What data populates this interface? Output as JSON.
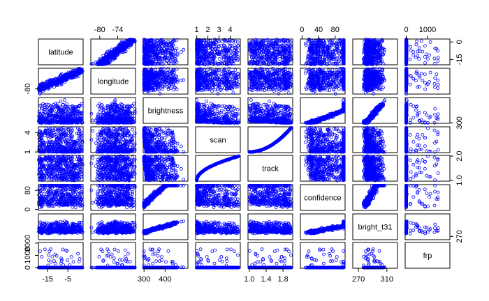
{
  "colors": {
    "point": "#0000ff",
    "frame": "#000000",
    "background": "#ffffff"
  },
  "chart_data": {
    "type": "scatter",
    "subtype": "scatterplot-matrix",
    "title": "",
    "variables": [
      "latitude",
      "longitude",
      "brightness",
      "scan",
      "track",
      "confidence",
      "bright_t31",
      "frp"
    ],
    "ranges": {
      "latitude": [
        -19.5,
        2.5
      ],
      "longitude": [
        -83,
        -68
      ],
      "brightness": [
        296,
        508
      ],
      "scan": [
        0.9,
        4.9
      ],
      "track": [
        0.97,
        2.03
      ],
      "confidence": [
        -4,
        104
      ],
      "bright_t31": [
        262,
        325
      ],
      "frp": [
        -50,
        2050
      ]
    },
    "axis_ticks": {
      "top": [
        {
          "variable": "longitude",
          "ticks": [
            -80,
            -74
          ]
        },
        {
          "variable": "scan",
          "ticks": [
            1,
            2,
            3,
            4
          ]
        },
        {
          "variable": "confidence",
          "ticks": [
            0,
            40,
            80
          ]
        },
        {
          "variable": "frp",
          "ticks": [
            0,
            1000
          ]
        }
      ],
      "bottom": [
        {
          "variable": "latitude",
          "ticks": [
            -15,
            -5
          ]
        },
        {
          "variable": "brightness",
          "ticks": [
            300,
            400
          ]
        },
        {
          "variable": "track",
          "ticks": [
            1.0,
            1.4,
            1.8
          ]
        },
        {
          "variable": "bright_t31",
          "ticks": [
            270,
            310
          ]
        }
      ],
      "right": [
        {
          "variable": "latitude",
          "ticks": [
            0,
            -15
          ]
        },
        {
          "variable": "brightness",
          "ticks": [
            300
          ]
        },
        {
          "variable": "track",
          "ticks": [
            1.0,
            2.0
          ]
        },
        {
          "variable": "bright_t31",
          "ticks": [
            270
          ]
        }
      ],
      "left": [
        {
          "variable": "longitude",
          "ticks": [
            -80
          ]
        },
        {
          "variable": "scan",
          "ticks": [
            1,
            4
          ]
        },
        {
          "variable": "confidence",
          "ticks": [
            0,
            80
          ]
        },
        {
          "variable": "frp",
          "ticks": [
            0,
            1000,
            2000
          ]
        }
      ]
    },
    "tick_labels": {
      "top": [
        {
          "variable": "longitude",
          "labels": [
            "-80",
            "-74"
          ]
        },
        {
          "variable": "scan",
          "labels": [
            "1",
            "2",
            "3",
            "4"
          ]
        },
        {
          "variable": "confidence",
          "labels": [
            "0",
            "40",
            "80"
          ]
        },
        {
          "variable": "frp",
          "labels": [
            "0",
            "1000"
          ]
        }
      ],
      "bottom": [
        {
          "variable": "latitude",
          "labels": [
            "-15",
            "-5"
          ]
        },
        {
          "variable": "brightness",
          "labels": [
            "300",
            "400"
          ]
        },
        {
          "variable": "track",
          "labels": [
            "1.0",
            "1.4",
            "1.8"
          ]
        },
        {
          "variable": "bright_t31",
          "labels": [
            "270",
            "310"
          ]
        }
      ],
      "right": [
        {
          "variable": "latitude",
          "labels": [
            "0",
            "-15"
          ]
        },
        {
          "variable": "brightness",
          "labels": [
            "300"
          ]
        },
        {
          "variable": "track",
          "labels": [
            "1.0",
            "2.0"
          ]
        },
        {
          "variable": "bright_t31",
          "labels": [
            "270"
          ]
        }
      ],
      "left": [
        {
          "variable": "longitude",
          "labels": [
            "-80"
          ]
        },
        {
          "variable": "scan",
          "labels": [
            "1",
            "4"
          ]
        },
        {
          "variable": "confidence",
          "labels": [
            "0",
            "80"
          ]
        },
        {
          "variable": "frp",
          "labels": [
            "0",
            "1000",
            "2000"
          ]
        }
      ]
    },
    "approx_observations": [
      {
        "latitude": -17,
        "longitude": -82.5,
        "brightness": 320,
        "scan": 1.0,
        "track": 1.0,
        "confidence": 10,
        "bright_t31": 285,
        "frp": 10
      },
      {
        "latitude": -15,
        "longitude": -80,
        "brightness": 340,
        "scan": 1.3,
        "track": 1.1,
        "confidence": 60,
        "bright_t31": 290,
        "frp": 40
      },
      {
        "latitude": -12,
        "longitude": -77,
        "brightness": 360,
        "scan": 1.8,
        "track": 1.3,
        "confidence": 80,
        "bright_t31": 295,
        "frp": 120
      },
      {
        "latitude": -10,
        "longitude": -75,
        "brightness": 380,
        "scan": 2.5,
        "track": 1.5,
        "confidence": 90,
        "bright_t31": 300,
        "frp": 300
      },
      {
        "latitude": -8,
        "longitude": -73,
        "brightness": 400,
        "scan": 3.0,
        "track": 1.6,
        "confidence": 95,
        "bright_t31": 305,
        "frp": 700
      },
      {
        "latitude": -6,
        "longitude": -72,
        "brightness": 420,
        "scan": 3.5,
        "track": 1.75,
        "confidence": 100,
        "bright_t31": 310,
        "frp": 1200
      },
      {
        "latitude": -4,
        "longitude": -71,
        "brightness": 450,
        "scan": 4.0,
        "track": 1.9,
        "confidence": 100,
        "bright_t31": 315,
        "frp": 1800
      },
      {
        "latitude": 0,
        "longitude": -69,
        "brightness": 480,
        "scan": 4.8,
        "track": 2.0,
        "confidence": 100,
        "bright_t31": 320,
        "frp": 2000
      }
    ]
  }
}
